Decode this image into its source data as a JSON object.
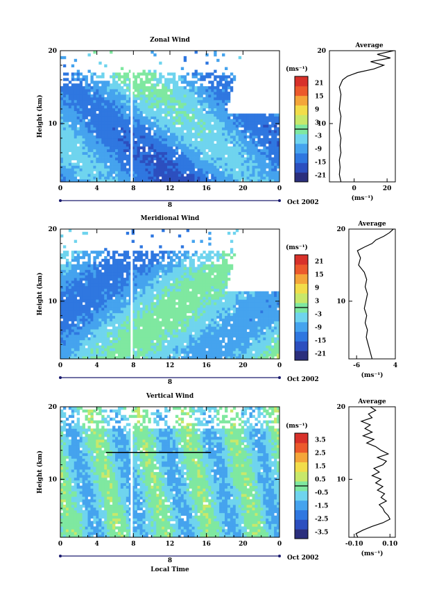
{
  "chart_data": [
    {
      "type": "heatmap",
      "title": "Zonal Wind",
      "ylabel": "Height (km)",
      "xlabel": "",
      "xlim": [
        0,
        24
      ],
      "ylim": [
        2,
        20
      ],
      "x_ticks": [
        "0",
        "4",
        "8",
        "12",
        "16",
        "20",
        "0"
      ],
      "y_ticks": [
        "20",
        "10"
      ],
      "date_marker": "8",
      "date_label": "Oct 2002",
      "colorbar": {
        "unit": "(ms⁻¹)",
        "ticks": [
          "21",
          "15",
          "9",
          "3",
          "-3",
          "-9",
          "-15",
          "-21"
        ],
        "range": [
          -24,
          24
        ]
      },
      "average_profile": {
        "title": "Average",
        "xlabel": "(ms⁻¹)",
        "x_ticks": [
          "0",
          "20"
        ],
        "x_tick_values": [
          0,
          20
        ],
        "xlim": [
          -15,
          25
        ],
        "y_ticks": [
          "20",
          "10"
        ],
        "height_km": [
          2,
          3,
          4,
          5,
          6,
          7,
          8,
          9,
          10,
          11,
          12,
          13,
          14,
          15,
          16,
          16.5,
          17,
          17.5,
          18,
          18.5,
          19,
          19.5,
          20
        ],
        "value": [
          -8,
          -9,
          -8.5,
          -9,
          -8,
          -8.5,
          -8,
          -9,
          -8.5,
          -8,
          -9,
          -8.5,
          -8,
          -9,
          -7,
          -4,
          2,
          12,
          18,
          10,
          22,
          14,
          24
        ]
      }
    },
    {
      "type": "heatmap",
      "title": "Meridional Wind",
      "ylabel": "Height (km)",
      "xlabel": "",
      "xlim": [
        0,
        24
      ],
      "ylim": [
        2,
        20
      ],
      "x_ticks": [
        "0",
        "4",
        "8",
        "12",
        "16",
        "20",
        "0"
      ],
      "y_ticks": [
        "20",
        "10"
      ],
      "date_marker": "8",
      "date_label": "Oct 2002",
      "colorbar": {
        "unit": "(ms⁻¹)",
        "ticks": [
          "21",
          "15",
          "9",
          "3",
          "-3",
          "-9",
          "-15",
          "-21"
        ],
        "range": [
          -24,
          24
        ]
      },
      "average_profile": {
        "title": "Average",
        "xlabel": "(ms⁻¹)",
        "x_ticks": [
          "-6",
          "4"
        ],
        "x_tick_values": [
          -6,
          4
        ],
        "xlim": [
          -8,
          4
        ],
        "y_ticks": [
          "20",
          "10"
        ],
        "height_km": [
          2,
          3,
          4,
          5,
          6,
          7,
          8,
          9,
          10,
          11,
          12,
          13,
          14,
          15,
          16,
          17,
          17.5,
          18,
          18.5,
          19,
          19.5,
          20
        ],
        "value": [
          -2,
          -2.5,
          -3,
          -3.5,
          -3.2,
          -3.8,
          -3.4,
          -4,
          -3.6,
          -3.2,
          -3.8,
          -3.4,
          -4,
          -5.5,
          -5,
          -5.8,
          -4,
          -2,
          -1,
          1,
          2.5,
          3.5
        ]
      }
    },
    {
      "type": "heatmap",
      "title": "Vertical Wind",
      "ylabel": "Height (km)",
      "xlabel": "Local Time",
      "xlim": [
        0,
        24
      ],
      "ylim": [
        2,
        20
      ],
      "x_ticks": [
        "0",
        "4",
        "8",
        "12",
        "16",
        "20",
        "0"
      ],
      "y_ticks": [
        "20",
        "10"
      ],
      "date_marker": "8",
      "date_label": "Oct 2002",
      "colorbar": {
        "unit": "(ms⁻¹)",
        "ticks": [
          "3.5",
          "2.5",
          "1.5",
          "0.5",
          "-0.5",
          "-1.5",
          "-2.5",
          "-3.5"
        ],
        "range": [
          -4,
          4
        ]
      },
      "average_profile": {
        "title": "Average",
        "xlabel": "(ms⁻¹)",
        "x_ticks": [
          "-0.10",
          "0.10"
        ],
        "x_tick_values": [
          -0.1,
          0.1
        ],
        "xlim": [
          -0.13,
          0.13
        ],
        "y_ticks": [
          "20",
          "10"
        ],
        "height_km": [
          2,
          2.5,
          3,
          3.5,
          4,
          4.5,
          5,
          5.5,
          6,
          6.5,
          7,
          7.5,
          8,
          8.5,
          9,
          9.5,
          10,
          10.5,
          11,
          11.5,
          12,
          12.5,
          13,
          13.5,
          14,
          14.5,
          15,
          15.5,
          16,
          16.5,
          17,
          17.5,
          18,
          18.5,
          19,
          19.5,
          20
        ],
        "value": [
          -0.08,
          -0.09,
          -0.05,
          0.0,
          0.06,
          0.1,
          0.09,
          0.07,
          0.06,
          0.04,
          0.08,
          0.05,
          0.07,
          0.03,
          0.06,
          0.02,
          0.05,
          0.0,
          0.04,
          0.01,
          0.06,
          0.08,
          0.03,
          0.09,
          0.05,
          0.02,
          -0.03,
          0.01,
          -0.05,
          0.0,
          -0.04,
          -0.01,
          -0.06,
          0.0,
          -0.02,
          0.02,
          -0.01
        ]
      }
    }
  ]
}
